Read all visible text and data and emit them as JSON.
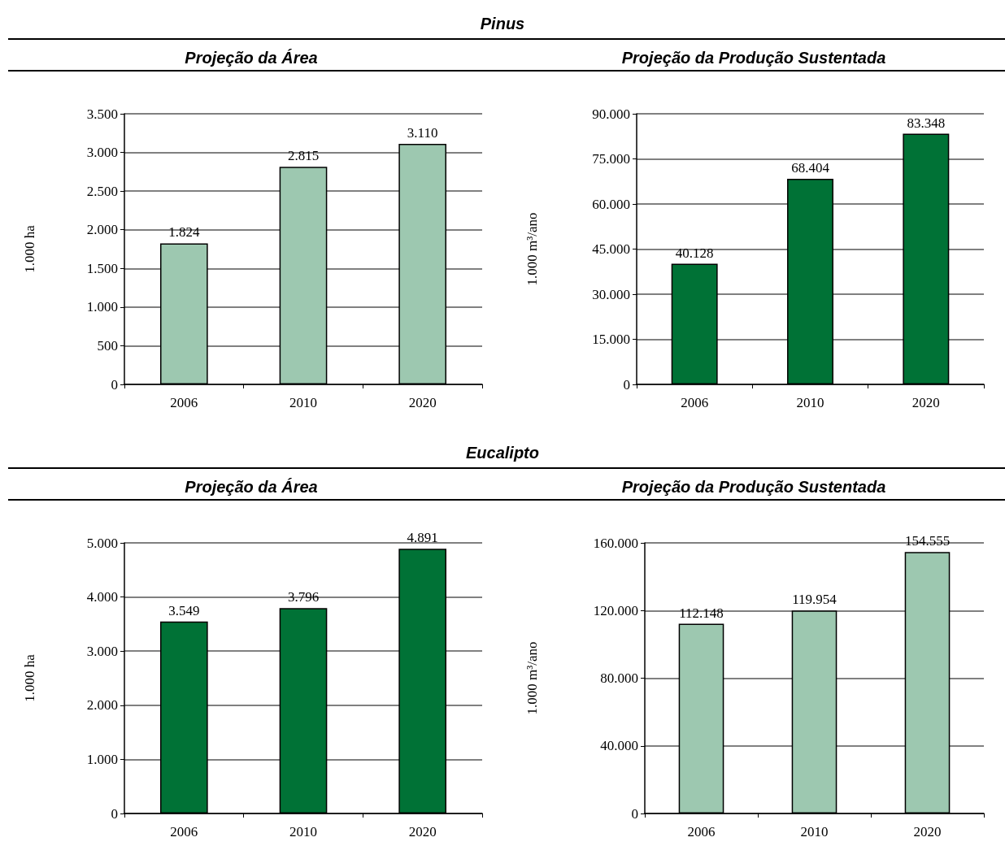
{
  "chart_data": [
    {
      "type": "bar",
      "title": "Projeção da Área",
      "annotations": [
        "Pinus"
      ],
      "ylabel": "1.000 ha",
      "categories": [
        "2006",
        "2010",
        "2020"
      ],
      "values": [
        1824,
        2815,
        3110
      ],
      "value_labels": [
        "1.824",
        "2.815",
        "3.110"
      ],
      "color": "#9dc8b0",
      "ylim": [
        0,
        3500
      ],
      "yticks": [
        {
          "value": 0,
          "label": "0"
        },
        {
          "value": 500,
          "label": "500"
        },
        {
          "value": 1000,
          "label": "1.000"
        },
        {
          "value": 1500,
          "label": "1.500"
        },
        {
          "value": 2000,
          "label": "2.000"
        },
        {
          "value": 2500,
          "label": "2.500"
        },
        {
          "value": 3000,
          "label": "3.000"
        },
        {
          "value": 3500,
          "label": "3.500"
        }
      ],
      "grid": "y"
    },
    {
      "type": "bar",
      "title": "Projeção da Produção Sustentada",
      "ylabel": "1.000 m³/ano",
      "categories": [
        "2006",
        "2010",
        "2020"
      ],
      "values": [
        40128,
        68404,
        83348
      ],
      "value_labels": [
        "40.128",
        "68.404",
        "83.348"
      ],
      "color": "#007236",
      "ylim": [
        0,
        90000
      ],
      "yticks": [
        {
          "value": 0,
          "label": "0"
        },
        {
          "value": 15000,
          "label": "15.000"
        },
        {
          "value": 30000,
          "label": "30.000"
        },
        {
          "value": 45000,
          "label": "45.000"
        },
        {
          "value": 60000,
          "label": "60.000"
        },
        {
          "value": 75000,
          "label": "75.000"
        },
        {
          "value": 90000,
          "label": "90.000"
        }
      ],
      "grid": "y"
    },
    {
      "type": "bar",
      "title": "Projeção da Área",
      "annotations": [
        "Eucalipto"
      ],
      "ylabel": "1.000 ha",
      "categories": [
        "2006",
        "2010",
        "2020"
      ],
      "values": [
        3549,
        3796,
        4891
      ],
      "value_labels": [
        "3.549",
        "3.796",
        "4.891"
      ],
      "color": "#007236",
      "ylim": [
        0,
        5000
      ],
      "yticks": [
        {
          "value": 0,
          "label": "0"
        },
        {
          "value": 1000,
          "label": "1.000"
        },
        {
          "value": 2000,
          "label": "2.000"
        },
        {
          "value": 3000,
          "label": "3.000"
        },
        {
          "value": 4000,
          "label": "4.000"
        },
        {
          "value": 5000,
          "label": "5.000"
        }
      ],
      "grid": "y"
    },
    {
      "type": "bar",
      "title": "Projeção da Produção Sustentada",
      "ylabel": "1.000 m³/ano",
      "categories": [
        "2006",
        "2010",
        "2020"
      ],
      "values": [
        112148,
        119954,
        154555
      ],
      "value_labels": [
        "112.148",
        "119.954",
        "154.555"
      ],
      "color": "#9dc8b0",
      "ylim": [
        0,
        160000
      ],
      "yticks": [
        {
          "value": 0,
          "label": "0"
        },
        {
          "value": 40000,
          "label": "40.000"
        },
        {
          "value": 80000,
          "label": "80.000"
        },
        {
          "value": 120000,
          "label": "120.000"
        },
        {
          "value": 160000,
          "label": "160.000"
        }
      ],
      "grid": "y"
    }
  ]
}
